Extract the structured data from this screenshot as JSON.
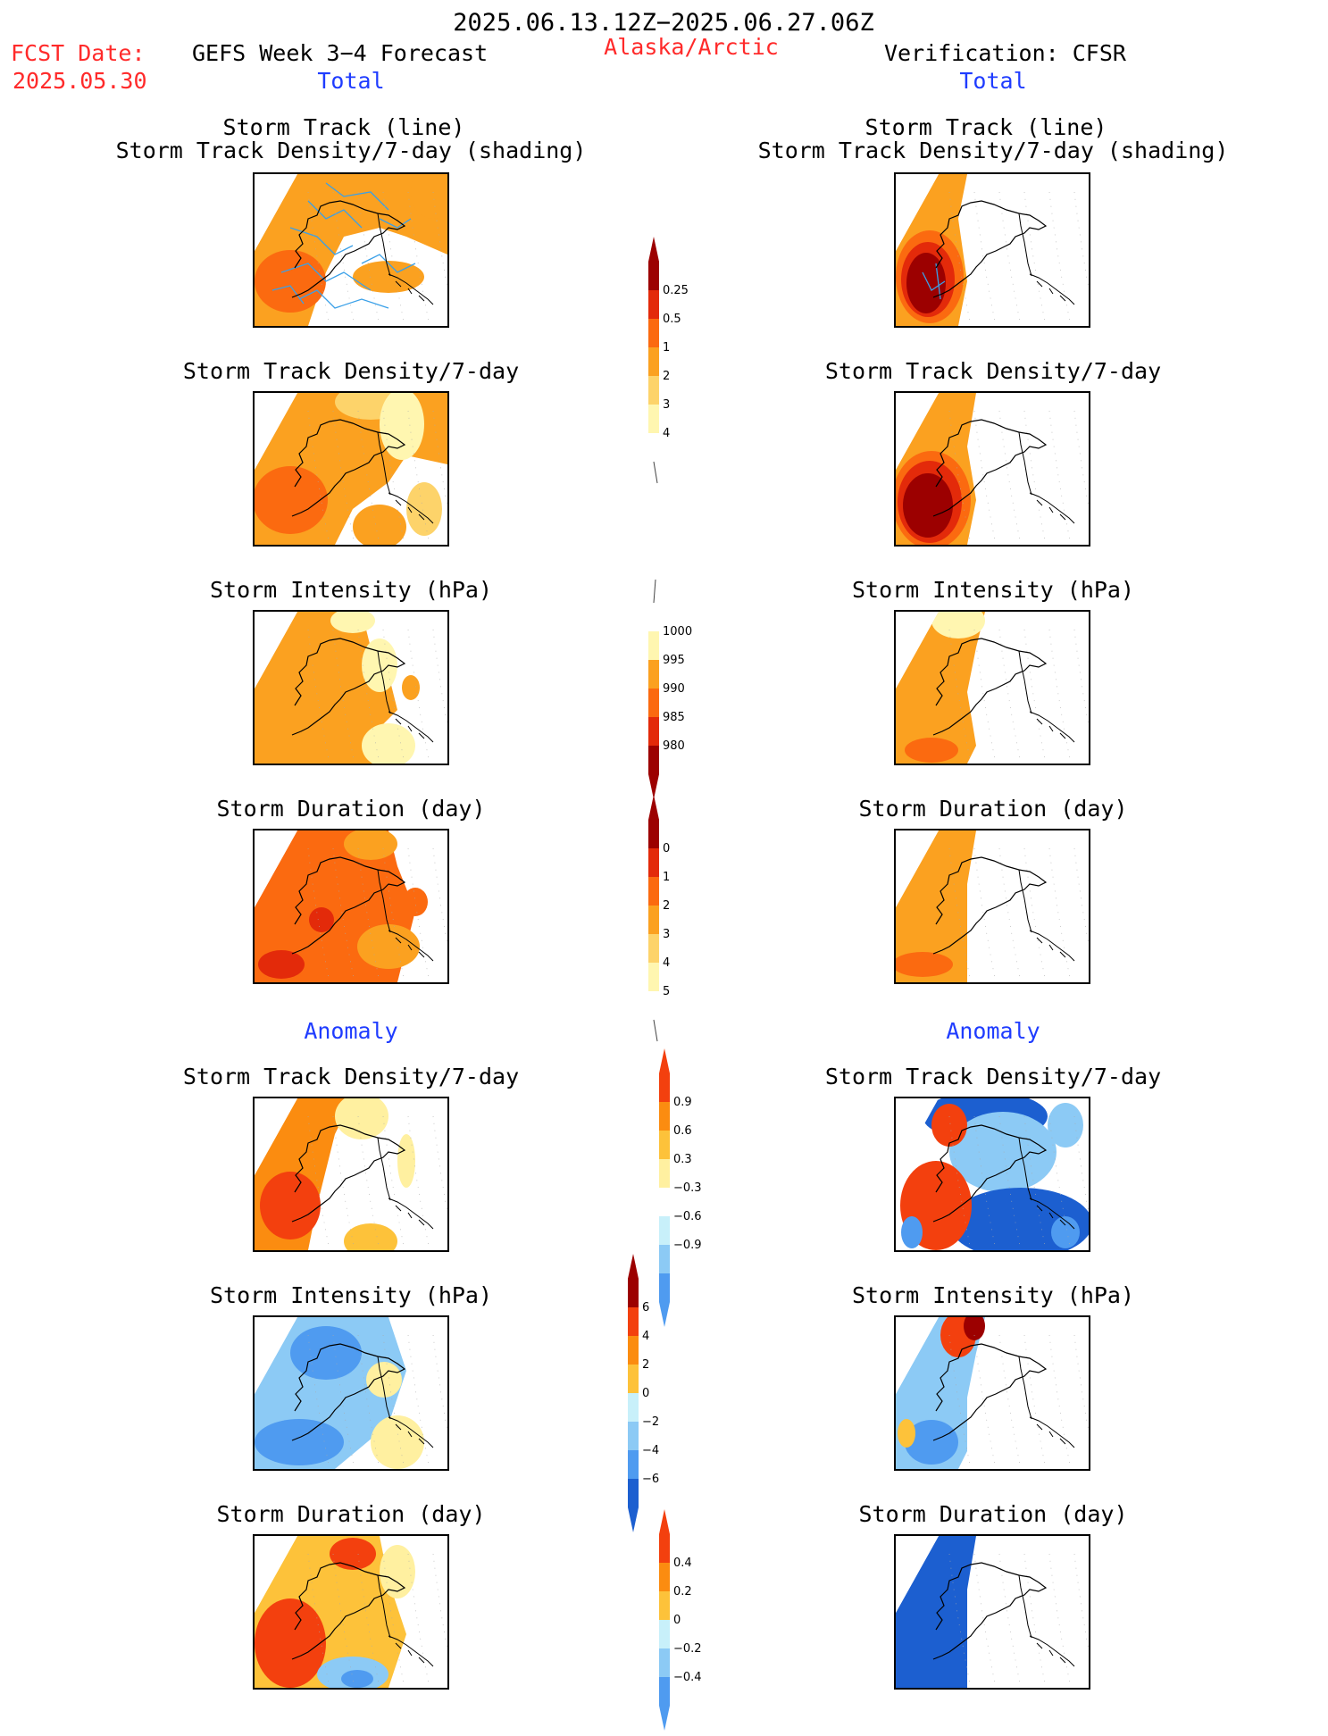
{
  "header": {
    "date_range": "2025.06.13.12Z−2025.06.27.06Z",
    "fcst_label": "FCST Date:",
    "fcst_date": "2025.05.30",
    "model_title": "GEFS Week 3−4 Forecast",
    "region": "Alaska/Arctic",
    "verification": "Verification: CFSR"
  },
  "columns": {
    "left_total": "Total",
    "right_total": "Total",
    "left_anomaly": "Anomaly",
    "right_anomaly": "Anomaly"
  },
  "colors": {
    "palette_total": [
      "#ffffff",
      "#fff6b0",
      "#fdd36a",
      "#fba120",
      "#fb6a10",
      "#e32a0a",
      "#9c0000"
    ],
    "palette_anom": [
      "#1c5fd0",
      "#4f9bf0",
      "#8ccaf5",
      "#c8f0fa",
      "#ffffff",
      "#fff0a0",
      "#fdc23a",
      "#fb8c10",
      "#f3400e",
      "#9c0000"
    ],
    "track_line": "#3aa0e8"
  },
  "panels": [
    {
      "id": "fc-track",
      "title1": "Storm Track (line)",
      "title2": "Storm Track Density/7-day (shading)",
      "scheme": "track-fc"
    },
    {
      "id": "vf-track",
      "title1": "Storm Track (line)",
      "title2": "Storm Track Density/7-day (shading)",
      "scheme": "track-vf"
    },
    {
      "id": "fc-density",
      "title1": "Storm Track Density/7-day",
      "scheme": "density-fc"
    },
    {
      "id": "vf-density",
      "title1": "Storm Track Density/7-day",
      "scheme": "density-vf"
    },
    {
      "id": "fc-intensity",
      "title1": "Storm Intensity (hPa)",
      "scheme": "intensity-fc"
    },
    {
      "id": "vf-intensity",
      "title1": "Storm Intensity (hPa)",
      "scheme": "intensity-vf"
    },
    {
      "id": "fc-duration",
      "title1": "Storm Duration (day)",
      "scheme": "duration-fc"
    },
    {
      "id": "vf-duration",
      "title1": "Storm Duration (day)",
      "scheme": "duration-vf"
    },
    {
      "id": "fc-density-anom",
      "title1": "Storm Track Density/7-day",
      "scheme": "dens-anom-fc"
    },
    {
      "id": "vf-density-anom",
      "title1": "Storm Track Density/7-day",
      "scheme": "dens-anom-vf"
    },
    {
      "id": "fc-intensity-anom",
      "title1": "Storm Intensity (hPa)",
      "scheme": "int-anom-fc"
    },
    {
      "id": "vf-intensity-anom",
      "title1": "Storm Intensity (hPa)",
      "scheme": "int-anom-vf"
    },
    {
      "id": "fc-duration-anom",
      "title1": "Storm Duration (day)",
      "scheme": "dur-anom-fc"
    },
    {
      "id": "vf-duration-anom",
      "title1": "Storm Duration (day)",
      "scheme": "dur-anom-vf"
    }
  ],
  "chart_data": {
    "type": "heatmap",
    "colorbars": [
      {
        "name": "density",
        "levels": [
          "0.25",
          "0.5",
          "1",
          "2",
          "3",
          "4"
        ]
      },
      {
        "name": "intensity",
        "levels": [
          "1000",
          "995",
          "990",
          "985",
          "980"
        ]
      },
      {
        "name": "duration",
        "levels": [
          "0",
          "1",
          "2",
          "3",
          "4",
          "5"
        ]
      },
      {
        "name": "density-anomaly",
        "levels": [
          "0.9",
          "0.6",
          "0.3",
          "−0.3",
          "−0.6",
          "−0.9"
        ]
      },
      {
        "name": "intensity-anomaly",
        "levels": [
          "6",
          "4",
          "2",
          "0",
          "−2",
          "−4",
          "−6"
        ]
      },
      {
        "name": "duration-anomaly",
        "levels": [
          "0.4",
          "0.2",
          "0",
          "−0.2",
          "−0.4"
        ]
      }
    ]
  }
}
